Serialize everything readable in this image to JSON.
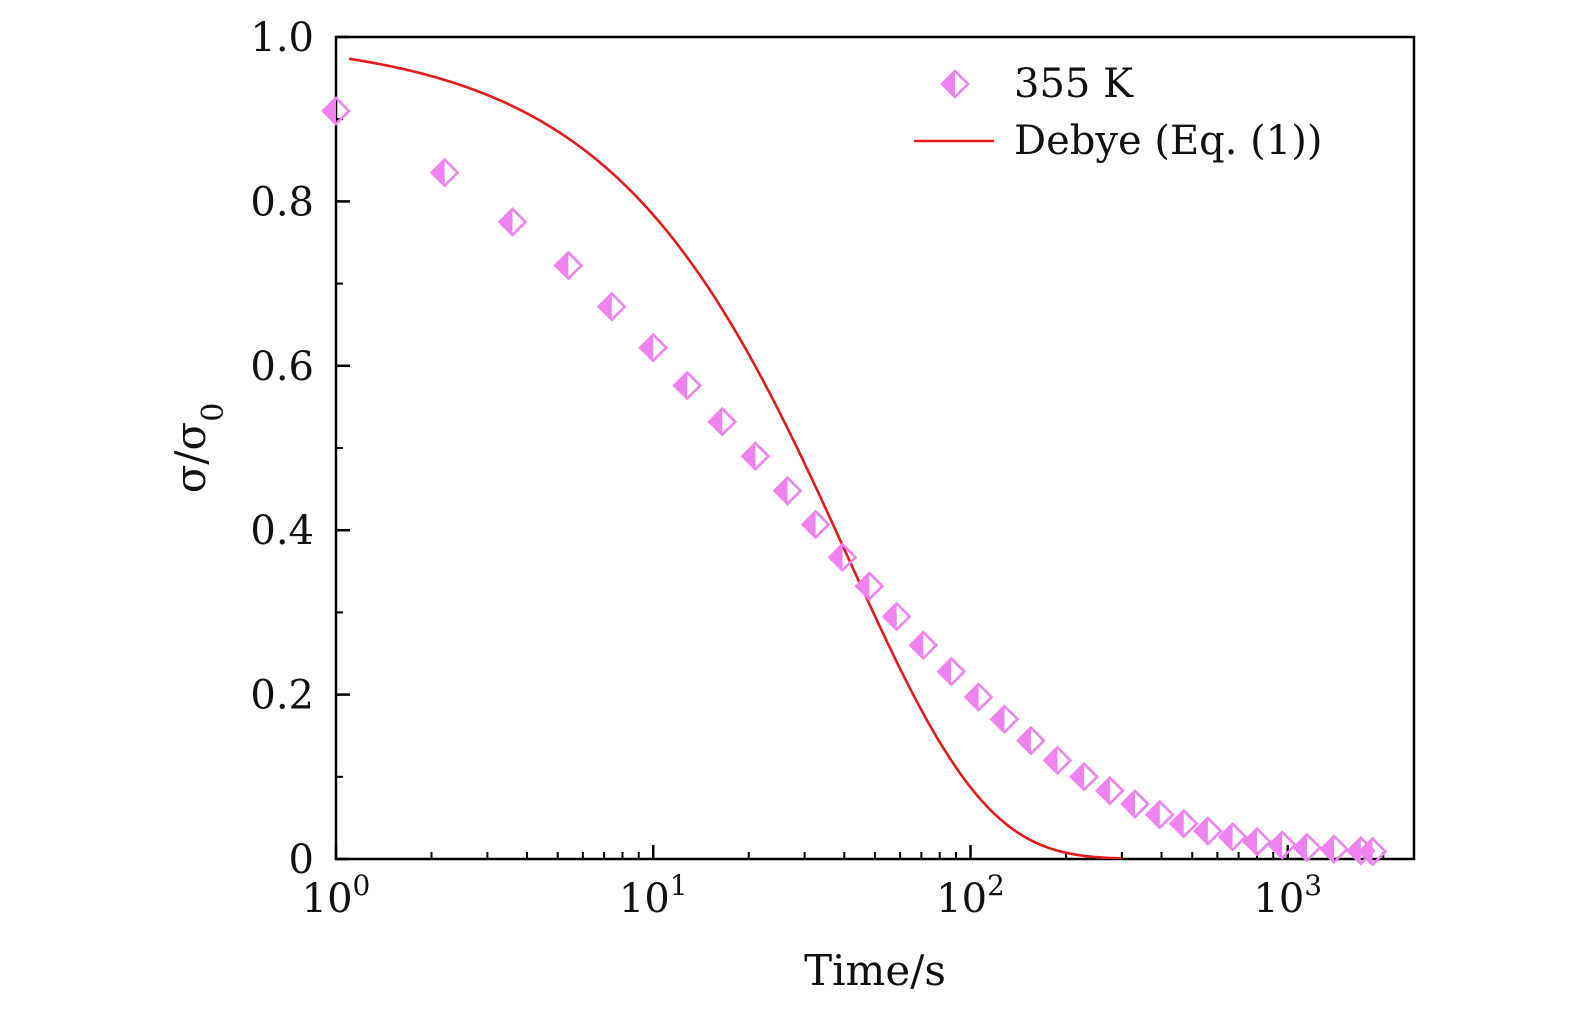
{
  "chart_data": {
    "type": "scatter",
    "title": "",
    "xlabel": "Time/s",
    "ylabel": "σ/σ",
    "ylabel_subscript": "0",
    "x_scale": "log",
    "xlim": [
      1,
      2500
    ],
    "ylim": [
      0,
      1.0
    ],
    "grid": false,
    "legend_position": "top-right",
    "x_ticks": [
      {
        "value": 1,
        "base": "10",
        "exp": "0"
      },
      {
        "value": 10,
        "base": "10",
        "exp": "1"
      },
      {
        "value": 100,
        "base": "10",
        "exp": "2"
      },
      {
        "value": 1000,
        "base": "10",
        "exp": "3"
      }
    ],
    "y_ticks": [
      {
        "value": 0,
        "label": "0"
      },
      {
        "value": 0.2,
        "label": "0.2"
      },
      {
        "value": 0.4,
        "label": "0.4"
      },
      {
        "value": 0.6,
        "label": "0.6"
      },
      {
        "value": 0.8,
        "label": "0.8"
      },
      {
        "value": 1.0,
        "label": "1.0"
      }
    ],
    "series": [
      {
        "name": "355 K",
        "kind": "scatter",
        "marker": "half-filled-diamond",
        "color": "#ee82ee",
        "x": [
          1.0,
          2.2,
          3.6,
          5.4,
          7.4,
          10.0,
          12.8,
          16.5,
          21.0,
          26.5,
          32.5,
          39.5,
          48.0,
          58.5,
          71.0,
          87.0,
          106,
          128,
          155,
          188,
          228,
          275,
          330,
          395,
          470,
          560,
          670,
          800,
          960,
          1150,
          1400,
          1700,
          1850
        ],
        "y": [
          0.91,
          0.835,
          0.775,
          0.722,
          0.672,
          0.622,
          0.576,
          0.532,
          0.49,
          0.448,
          0.407,
          0.367,
          0.332,
          0.295,
          0.26,
          0.228,
          0.197,
          0.17,
          0.144,
          0.12,
          0.1,
          0.083,
          0.067,
          0.054,
          0.043,
          0.034,
          0.027,
          0.021,
          0.017,
          0.014,
          0.012,
          0.01,
          0.009
        ]
      },
      {
        "name": "Debye (Eq. (1))",
        "kind": "line",
        "color": "#e31a1c",
        "model": "exp(-t/tau)",
        "tau": 41,
        "x_range": [
          1.1,
          300
        ]
      }
    ]
  }
}
